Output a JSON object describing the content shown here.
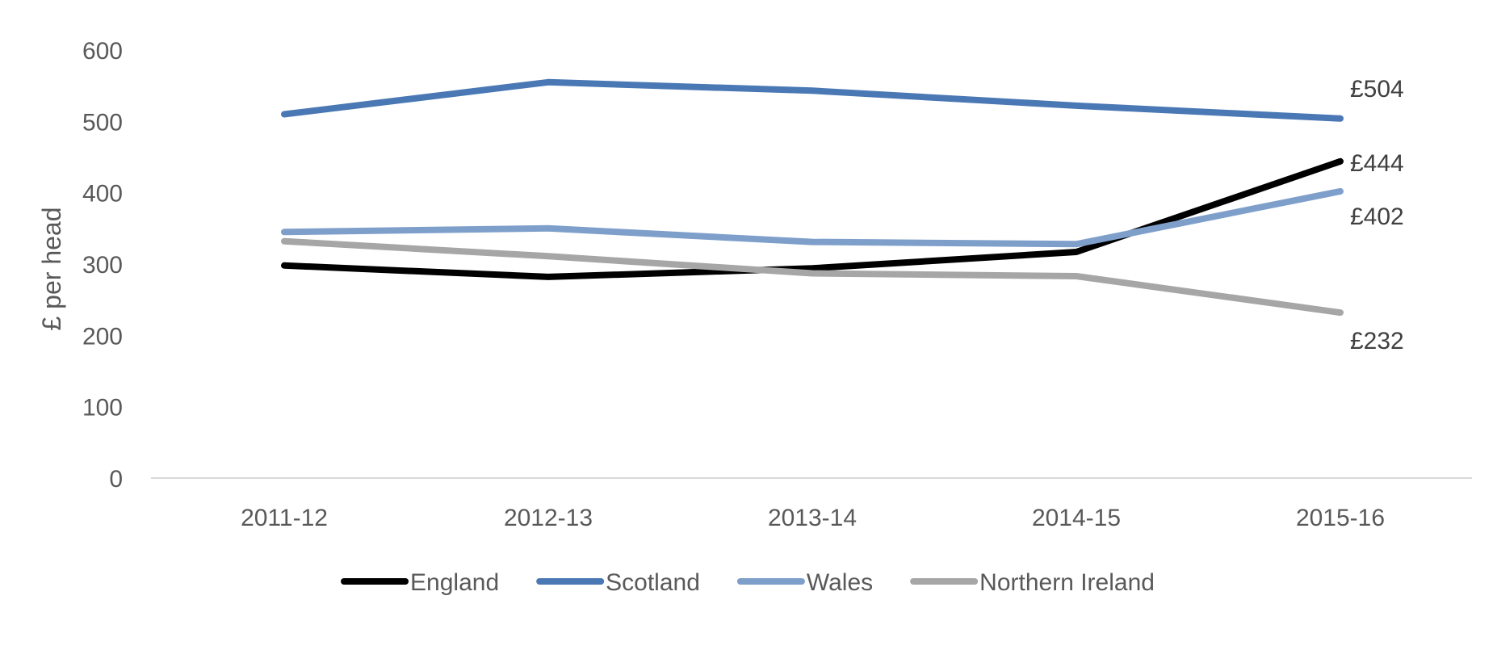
{
  "chart_data": {
    "type": "line",
    "title": "",
    "xlabel": "",
    "ylabel": "£ per head",
    "categories": [
      "2011-12",
      "2012-13",
      "2013-14",
      "2014-15",
      "2015-16"
    ],
    "ylim": [
      0,
      600
    ],
    "yticks": [
      0,
      100,
      200,
      300,
      400,
      500,
      600
    ],
    "grid": false,
    "legend_position": "bottom",
    "series": [
      {
        "name": "England",
        "color": "#000000",
        "values": [
          298,
          282,
          294,
          317,
          444
        ]
      },
      {
        "name": "Scotland",
        "color": "#4a78b4",
        "values": [
          510,
          555,
          543,
          522,
          504
        ]
      },
      {
        "name": "Wales",
        "color": "#7f9fcb",
        "values": [
          345,
          350,
          331,
          328,
          402
        ]
      },
      {
        "name": "Northern Ireland",
        "color": "#a6a6a6",
        "values": [
          332,
          311,
          287,
          283,
          232
        ]
      }
    ],
    "annotations": [
      {
        "text": "£504",
        "series": "Scotland",
        "category": "2015-16"
      },
      {
        "text": "£444",
        "series": "England",
        "category": "2015-16"
      },
      {
        "text": "£402",
        "series": "Wales",
        "category": "2015-16"
      },
      {
        "text": "£232",
        "series": "Northern Ireland",
        "category": "2015-16"
      }
    ]
  }
}
